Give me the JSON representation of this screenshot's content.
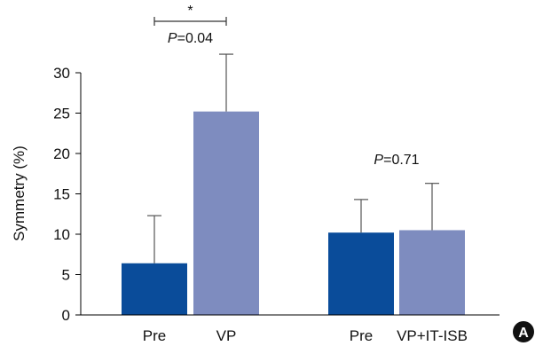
{
  "chart_data": {
    "type": "bar",
    "ylabel": "Symmetry (%)",
    "ylim": [
      0,
      30
    ],
    "yticks": [
      0,
      5,
      10,
      15,
      20,
      25,
      30
    ],
    "grid": false,
    "panel_label": "A",
    "groups": [
      {
        "bars": [
          {
            "label": "Pre",
            "value": 6.4,
            "error": 5.9,
            "color": "#0A4C9A"
          },
          {
            "label": "VP",
            "value": 25.2,
            "error": 7.1,
            "color": "#7E8CBF"
          }
        ],
        "annotation": {
          "significance": "*",
          "p_prefix": "P",
          "p_value": "=0.04"
        }
      },
      {
        "bars": [
          {
            "label": "Pre",
            "value": 10.2,
            "error": 4.1,
            "color": "#0A4C9A"
          },
          {
            "label": "VP+IT-ISB",
            "value": 10.5,
            "error": 5.8,
            "color": "#7E8CBF"
          }
        ],
        "annotation": {
          "significance": "",
          "p_prefix": "P",
          "p_value": "=0.71"
        }
      }
    ]
  }
}
